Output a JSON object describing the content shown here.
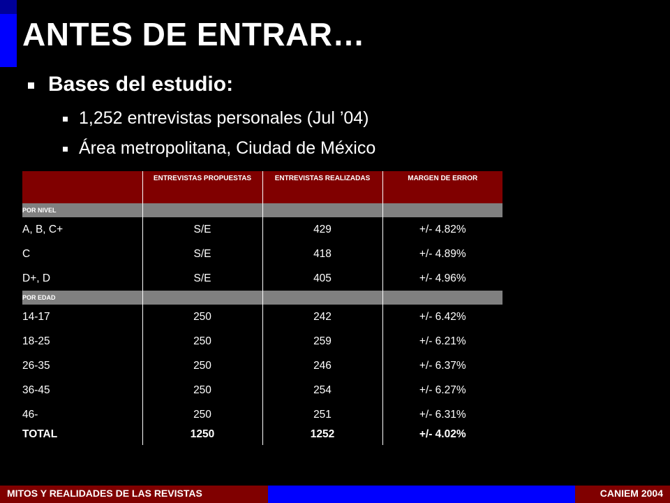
{
  "slide": {
    "title": "ANTES DE ENTRAR…",
    "bullet_main": "Bases del estudio:",
    "sub_bullets": [
      "1,252 entrevistas personales (Jul ’04)",
      "Área metropolitana, Ciudad de México"
    ]
  },
  "table": {
    "headers": [
      "",
      "ENTREVISTAS PROPUESTAS",
      "ENTREVISTAS REALIZADAS",
      "MARGEN DE ERROR"
    ],
    "groups": [
      {
        "label": "POR NIVEL",
        "rows": [
          [
            "A, B, C+",
            "S/E",
            "429",
            "+/- 4.82%"
          ],
          [
            "C",
            "S/E",
            "418",
            "+/- 4.89%"
          ],
          [
            "D+, D",
            "S/E",
            "405",
            "+/- 4.96%"
          ]
        ]
      },
      {
        "label": "POR EDAD",
        "rows": [
          [
            "14-17",
            "250",
            "242",
            "+/- 6.42%"
          ],
          [
            "18-25",
            "250",
            "259",
            "+/- 6.21%"
          ],
          [
            "26-35",
            "250",
            "246",
            "+/- 6.37%"
          ],
          [
            "36-45",
            "250",
            "254",
            "+/- 6.27%"
          ],
          [
            "46-",
            "250",
            "251",
            "+/- 6.31%"
          ]
        ]
      }
    ],
    "total": [
      "TOTAL",
      "1250",
      "1252",
      "+/- 4.02%"
    ]
  },
  "footer": {
    "left": "MITOS Y REALIDADES DE LAS REVISTAS",
    "right": "CANIEM 2004"
  },
  "colors": {
    "background": "#000000",
    "accent": "#0000ff",
    "header_fill": "#800000",
    "group_fill": "#808080",
    "text": "#ffffff"
  }
}
